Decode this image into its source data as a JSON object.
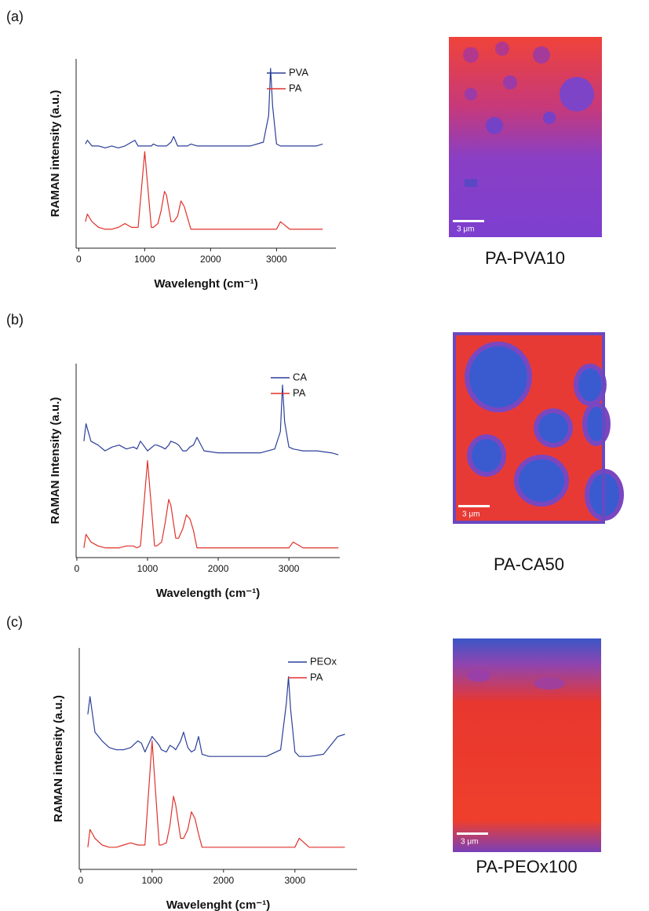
{
  "panel_labels": [
    "(a)",
    "(b)",
    "(c)"
  ],
  "images": [
    {
      "caption": "PA-PVA10",
      "scale_bar": "3 μm"
    },
    {
      "caption": "PA-CA50",
      "scale_bar": "3 μm"
    },
    {
      "caption": "PA-PEOx100",
      "scale_bar": "3 μm"
    }
  ],
  "chart_data": [
    {
      "type": "line",
      "x_label": "Wavelenght (cm⁻¹)",
      "y_label": "RAMAN intensity (a.u.)",
      "legend": "upper right",
      "x": [
        100,
        130,
        200,
        300,
        400,
        500,
        600,
        700,
        800,
        850,
        900,
        1000,
        1100,
        1130,
        1200,
        1250,
        1300,
        1330,
        1400,
        1440,
        1500,
        1550,
        1600,
        1650,
        1700,
        1800,
        2000,
        2200,
        2400,
        2600,
        2800,
        2880,
        2910,
        2940,
        3000,
        3060,
        3200,
        3400,
        3600,
        3700
      ],
      "xlim": [
        -40,
        3900
      ],
      "xticks": [
        0,
        1000,
        2000,
        3000
      ],
      "ylim": [
        0,
        100
      ],
      "series": [
        {
          "name": "PVA",
          "color": "#2b3f9a",
          "values": [
            55,
            57,
            54,
            54,
            53,
            54,
            53,
            54,
            56,
            57,
            54,
            54,
            54,
            55,
            54,
            54,
            54,
            54,
            56,
            59,
            54,
            54,
            54,
            54,
            55,
            54,
            54,
            54,
            54,
            54,
            56,
            70,
            95,
            75,
            55,
            54,
            54,
            54,
            54,
            55
          ]
        },
        {
          "name": "PA",
          "color": "#e0322b",
          "values": [
            14,
            18,
            14,
            11,
            10,
            10,
            11,
            13,
            11,
            11,
            11,
            51,
            11,
            11,
            13,
            20,
            30,
            28,
            14,
            14,
            17,
            25,
            22,
            16,
            10,
            10,
            10,
            10,
            10,
            10,
            10,
            10,
            10,
            10,
            10,
            14,
            10,
            10,
            10,
            10
          ]
        }
      ]
    },
    {
      "type": "line",
      "x_label": "Wavelength (cm⁻¹)",
      "y_label": "RAMAN Intensity (a.u.)",
      "legend": "upper right",
      "x": [
        100,
        130,
        200,
        300,
        400,
        500,
        600,
        700,
        800,
        850,
        900,
        1000,
        1100,
        1130,
        1200,
        1250,
        1300,
        1330,
        1400,
        1440,
        1500,
        1550,
        1600,
        1650,
        1700,
        1800,
        2000,
        2200,
        2400,
        2600,
        2800,
        2880,
        2910,
        2940,
        3000,
        3060,
        3200,
        3400,
        3600,
        3700
      ],
      "xlim": [
        -10,
        3720
      ],
      "xticks": [
        0,
        1000,
        2000,
        3000
      ],
      "ylim": [
        0,
        100
      ],
      "series": [
        {
          "name": "CA",
          "color": "#2b3f9a",
          "values": [
            60,
            69,
            60,
            58,
            55,
            57,
            58,
            56,
            57,
            56,
            60,
            55,
            58,
            58,
            57,
            56,
            58,
            60,
            59,
            58,
            55,
            55,
            57,
            58,
            62,
            55,
            54,
            54,
            54,
            54,
            56,
            65,
            89,
            70,
            57,
            56,
            55,
            55,
            54,
            53
          ]
        },
        {
          "name": "PA",
          "color": "#e0322b",
          "values": [
            5,
            12,
            8,
            6,
            5,
            5,
            5,
            6,
            6,
            5,
            6,
            50,
            6,
            6,
            8,
            18,
            30,
            27,
            10,
            10,
            15,
            22,
            20,
            14,
            5,
            5,
            5,
            5,
            5,
            5,
            5,
            5,
            5,
            5,
            5,
            8,
            5,
            5,
            5,
            5
          ]
        }
      ]
    },
    {
      "type": "line",
      "x_label": "Wavelenght (cm⁻¹)",
      "y_label": "RAMAN intensity (a.u.)",
      "legend": "upper right",
      "x": [
        100,
        130,
        200,
        300,
        400,
        500,
        600,
        700,
        800,
        850,
        900,
        1000,
        1100,
        1130,
        1200,
        1250,
        1300,
        1330,
        1400,
        1440,
        1500,
        1550,
        1600,
        1650,
        1700,
        1800,
        2000,
        2200,
        2400,
        2600,
        2800,
        2880,
        2910,
        2940,
        3000,
        3060,
        3200,
        3400,
        3600,
        3700
      ],
      "xlim": [
        -20,
        3870
      ],
      "xticks": [
        0,
        1000,
        2000,
        3000
      ],
      "ylim": [
        0,
        100
      ],
      "series": [
        {
          "name": "PEOx",
          "color": "#2b3f9a",
          "values": [
            70,
            78,
            62,
            58,
            55,
            54,
            54,
            55,
            58,
            57,
            53,
            60,
            56,
            54,
            53,
            56,
            55,
            54,
            58,
            62,
            55,
            53,
            54,
            60,
            52,
            51,
            51,
            51,
            51,
            51,
            54,
            75,
            87,
            72,
            53,
            51,
            51,
            52,
            60,
            61
          ]
        },
        {
          "name": "PA",
          "color": "#e0322b",
          "values": [
            10,
            18,
            14,
            11,
            10,
            10,
            11,
            12,
            11,
            11,
            11,
            58,
            11,
            11,
            12,
            20,
            33,
            29,
            14,
            14,
            18,
            26,
            23,
            16,
            10,
            10,
            10,
            10,
            10,
            10,
            10,
            10,
            10,
            10,
            10,
            14,
            10,
            10,
            10,
            10
          ]
        }
      ]
    }
  ]
}
